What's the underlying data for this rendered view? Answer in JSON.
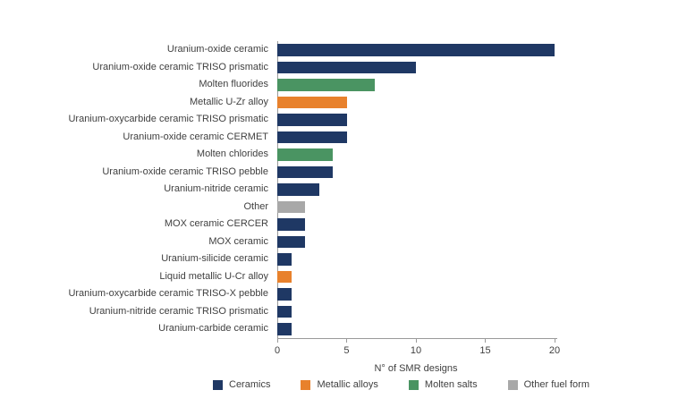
{
  "chart_data": {
    "type": "bar",
    "orientation": "horizontal",
    "title": "",
    "xlabel": "N° of SMR designs",
    "ylabel": "",
    "xlim": [
      0,
      20
    ],
    "xticks": [
      0,
      5,
      10,
      15,
      20
    ],
    "grid": false,
    "legend_position": "bottom",
    "categories": [
      "Uranium-oxide ceramic",
      "Uranium-oxide ceramic TRISO prismatic",
      "Molten fluorides",
      "Metallic U-Zr alloy",
      "Uranium-oxycarbide ceramic TRISO prismatic",
      "Uranium-oxide ceramic CERMET",
      "Molten chlorides",
      "Uranium-oxide ceramic TRISO pebble",
      "Uranium-nitride ceramic",
      "Other",
      "MOX ceramic CERCER",
      "MOX ceramic",
      "Uranium-silicide ceramic",
      "Liquid metallic U-Cr alloy",
      "Uranium-oxycarbide ceramic TRISO-X pebble",
      "Uranium-nitride ceramic TRISO prismatic",
      "Uranium-carbide ceramic"
    ],
    "bars": [
      {
        "label": "Uranium-oxide ceramic",
        "value": 20,
        "group": "ceramics"
      },
      {
        "label": "Uranium-oxide ceramic TRISO prismatic",
        "value": 10,
        "group": "ceramics"
      },
      {
        "label": "Molten fluorides",
        "value": 7,
        "group": "molten-salts"
      },
      {
        "label": "Metallic U-Zr alloy",
        "value": 5,
        "group": "metallic-alloys"
      },
      {
        "label": "Uranium-oxycarbide ceramic TRISO prismatic",
        "value": 5,
        "group": "ceramics"
      },
      {
        "label": "Uranium-oxide ceramic CERMET",
        "value": 5,
        "group": "ceramics"
      },
      {
        "label": "Molten chlorides",
        "value": 4,
        "group": "molten-salts"
      },
      {
        "label": "Uranium-oxide ceramic TRISO pebble",
        "value": 4,
        "group": "ceramics"
      },
      {
        "label": "Uranium-nitride ceramic",
        "value": 3,
        "group": "ceramics"
      },
      {
        "label": "Other",
        "value": 2,
        "group": "other-fuel-form"
      },
      {
        "label": "MOX ceramic CERCER",
        "value": 2,
        "group": "ceramics"
      },
      {
        "label": "MOX ceramic",
        "value": 2,
        "group": "ceramics"
      },
      {
        "label": "Uranium-silicide ceramic",
        "value": 1,
        "group": "ceramics"
      },
      {
        "label": "Liquid metallic U-Cr alloy",
        "value": 1,
        "group": "metallic-alloys"
      },
      {
        "label": "Uranium-oxycarbide ceramic TRISO-X pebble",
        "value": 1,
        "group": "ceramics"
      },
      {
        "label": "Uranium-nitride ceramic TRISO prismatic",
        "value": 1,
        "group": "ceramics"
      },
      {
        "label": "Uranium-carbide ceramic",
        "value": 1,
        "group": "ceramics"
      }
    ],
    "legend": [
      {
        "key": "ceramics",
        "label": "Ceramics",
        "color": "#1f3864"
      },
      {
        "key": "metallic-alloys",
        "label": "Metallic alloys",
        "color": "#e8812c"
      },
      {
        "key": "molten-salts",
        "label": "Molten salts",
        "color": "#4a9462"
      },
      {
        "key": "other-fuel-form",
        "label": "Other fuel form",
        "color": "#a8a8a8"
      }
    ],
    "colors": {
      "axis_line": "#9a9a9a",
      "text": "#404040",
      "background": "#ffffff"
    }
  }
}
